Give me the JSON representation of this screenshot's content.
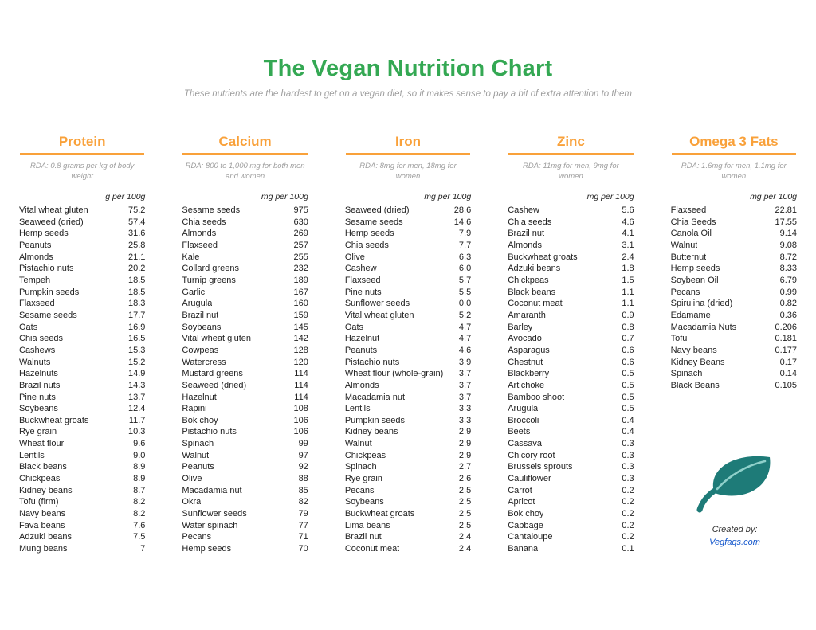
{
  "page": {
    "title": "The Vegan Nutrition Chart",
    "subtitle": "These nutrients are the hardest to get on a vegan diet, so it makes sense to pay a bit of extra attention to them"
  },
  "colors": {
    "title_green": "#34a853",
    "header_orange": "#f9a13a",
    "leaf_teal": "#1e7b78",
    "link_blue": "#1155cc"
  },
  "footer": {
    "created_by": "Created by:",
    "link": "Vegfaqs.com"
  },
  "columns": [
    {
      "name": "Protein",
      "rda": "RDA: 0.8 grams per kg of body weight",
      "unit": "g per 100g",
      "rows": [
        [
          "Vital wheat gluten",
          "75.2"
        ],
        [
          "Seaweed (dried)",
          "57.4"
        ],
        [
          "Hemp seeds",
          "31.6"
        ],
        [
          "Peanuts",
          "25.8"
        ],
        [
          "Almonds",
          "21.1"
        ],
        [
          "Pistachio nuts",
          "20.2"
        ],
        [
          "Tempeh",
          "18.5"
        ],
        [
          "Pumpkin seeds",
          "18.5"
        ],
        [
          "Flaxseed",
          "18.3"
        ],
        [
          "Sesame seeds",
          "17.7"
        ],
        [
          "Oats",
          "16.9"
        ],
        [
          "Chia seeds",
          "16.5"
        ],
        [
          "Cashews",
          "15.3"
        ],
        [
          "Walnuts",
          "15.2"
        ],
        [
          "Hazelnuts",
          "14.9"
        ],
        [
          "Brazil nuts",
          "14.3"
        ],
        [
          "Pine nuts",
          "13.7"
        ],
        [
          "Soybeans",
          "12.4"
        ],
        [
          "Buckwheat groats",
          "11.7"
        ],
        [
          "Rye grain",
          "10.3"
        ],
        [
          "Wheat flour",
          "9.6"
        ],
        [
          "Lentils",
          "9.0"
        ],
        [
          "Black beans",
          "8.9"
        ],
        [
          "Chickpeas",
          "8.9"
        ],
        [
          "Kidney beans",
          "8.7"
        ],
        [
          "Tofu (firm)",
          "8.2"
        ],
        [
          "Navy beans",
          "8.2"
        ],
        [
          "Fava beans",
          "7.6"
        ],
        [
          "Adzuki beans",
          "7.5"
        ],
        [
          "Mung beans",
          "7"
        ]
      ]
    },
    {
      "name": "Calcium",
      "rda": "RDA: 800 to 1,000 mg for both men and women",
      "unit": "mg per 100g",
      "rows": [
        [
          "Sesame seeds",
          "975"
        ],
        [
          "Chia seeds",
          "630"
        ],
        [
          "Almonds",
          "269"
        ],
        [
          "Flaxseed",
          "257"
        ],
        [
          "Kale",
          "255"
        ],
        [
          "Collard greens",
          "232"
        ],
        [
          "Turnip greens",
          "189"
        ],
        [
          "Garlic",
          "167"
        ],
        [
          "Arugula",
          "160"
        ],
        [
          "Brazil nut",
          "159"
        ],
        [
          "Soybeans",
          "145"
        ],
        [
          "Vital wheat gluten",
          "142"
        ],
        [
          "Cowpeas",
          "128"
        ],
        [
          "Watercress",
          "120"
        ],
        [
          "Mustard greens",
          "114"
        ],
        [
          "Seaweed (dried)",
          "114"
        ],
        [
          "Hazelnut",
          "114"
        ],
        [
          "Rapini",
          "108"
        ],
        [
          "Bok choy",
          "106"
        ],
        [
          "Pistachio nuts",
          "106"
        ],
        [
          "Spinach",
          "99"
        ],
        [
          "Walnut",
          "97"
        ],
        [
          "Peanuts",
          "92"
        ],
        [
          "Olive",
          "88"
        ],
        [
          "Macadamia nut",
          "85"
        ],
        [
          "Okra",
          "82"
        ],
        [
          "Sunflower seeds",
          "79"
        ],
        [
          "Water spinach",
          "77"
        ],
        [
          "Pecans",
          "71"
        ],
        [
          "Hemp seeds",
          "70"
        ]
      ]
    },
    {
      "name": "Iron",
      "rda": "RDA: 8mg for men, 18mg for women",
      "unit": "mg per 100g",
      "rows": [
        [
          "Seaweed (dried)",
          "28.6"
        ],
        [
          "Sesame seeds",
          "14.6"
        ],
        [
          "Hemp seeds",
          "7.9"
        ],
        [
          "Chia seeds",
          "7.7"
        ],
        [
          "Olive",
          "6.3"
        ],
        [
          "Cashew",
          "6.0"
        ],
        [
          "Flaxseed",
          "5.7"
        ],
        [
          "Pine nuts",
          "5.5"
        ],
        [
          "Sunflower seeds",
          "0.0"
        ],
        [
          "Vital wheat gluten",
          "5.2"
        ],
        [
          "Oats",
          "4.7"
        ],
        [
          "Hazelnut",
          "4.7"
        ],
        [
          "Peanuts",
          "4.6"
        ],
        [
          "Pistachio nuts",
          "3.9"
        ],
        [
          "Wheat flour (whole-grain)",
          "3.7"
        ],
        [
          "Almonds",
          "3.7"
        ],
        [
          "Macadamia nut",
          "3.7"
        ],
        [
          "Lentils",
          "3.3"
        ],
        [
          "Pumpkin seeds",
          "3.3"
        ],
        [
          "Kidney beans",
          "2.9"
        ],
        [
          "Walnut",
          "2.9"
        ],
        [
          "Chickpeas",
          "2.9"
        ],
        [
          "Spinach",
          "2.7"
        ],
        [
          "Rye grain",
          "2.6"
        ],
        [
          "Pecans",
          "2.5"
        ],
        [
          "Soybeans",
          "2.5"
        ],
        [
          "Buckwheat groats",
          "2.5"
        ],
        [
          "Lima beans",
          "2.5"
        ],
        [
          "Brazil nut",
          "2.4"
        ],
        [
          "Coconut meat",
          "2.4"
        ]
      ]
    },
    {
      "name": "Zinc",
      "rda": "RDA: 11mg for men, 9mg for women",
      "unit": "mg per 100g",
      "rows": [
        [
          "Cashew",
          "5.6"
        ],
        [
          "Chia seeds",
          "4.6"
        ],
        [
          "Brazil nut",
          "4.1"
        ],
        [
          "Almonds",
          "3.1"
        ],
        [
          "Buckwheat groats",
          "2.4"
        ],
        [
          "Adzuki beans",
          "1.8"
        ],
        [
          "Chickpeas",
          "1.5"
        ],
        [
          "Black beans",
          "1.1"
        ],
        [
          "Coconut meat",
          "1.1"
        ],
        [
          "Amaranth",
          "0.9"
        ],
        [
          "Barley",
          "0.8"
        ],
        [
          "Avocado",
          "0.7"
        ],
        [
          "Asparagus",
          "0.6"
        ],
        [
          "Chestnut",
          "0.6"
        ],
        [
          "Blackberry",
          "0.5"
        ],
        [
          "Artichoke",
          "0.5"
        ],
        [
          "Bamboo shoot",
          "0.5"
        ],
        [
          "Arugula",
          "0.5"
        ],
        [
          "Broccoli",
          "0.4"
        ],
        [
          "Beets",
          "0.4"
        ],
        [
          "Cassava",
          "0.3"
        ],
        [
          "Chicory root",
          "0.3"
        ],
        [
          "Brussels sprouts",
          "0.3"
        ],
        [
          "Cauliflower",
          "0.3"
        ],
        [
          "Carrot",
          "0.2"
        ],
        [
          "Apricot",
          "0.2"
        ],
        [
          "Bok choy",
          "0.2"
        ],
        [
          "Cabbage",
          "0.2"
        ],
        [
          "Cantaloupe",
          "0.2"
        ],
        [
          "Banana",
          "0.1"
        ]
      ]
    },
    {
      "name": "Omega 3 Fats",
      "rda": "RDA: 1.6mg for men, 1.1mg for women",
      "unit": "mg per 100g",
      "rows": [
        [
          "Flaxseed",
          "22.81"
        ],
        [
          "Chia Seeds",
          "17.55"
        ],
        [
          "Canola Oil",
          "9.14"
        ],
        [
          "Walnut",
          "9.08"
        ],
        [
          "Butternut",
          "8.72"
        ],
        [
          "Hemp seeds",
          "8.33"
        ],
        [
          "Soybean Oil",
          "6.79"
        ],
        [
          "Pecans",
          "0.99"
        ],
        [
          "Spirulina (dried)",
          "0.82"
        ],
        [
          "Edamame",
          "0.36"
        ],
        [
          "Macadamia Nuts",
          "0.206"
        ],
        [
          "Tofu",
          "0.181"
        ],
        [
          "Navy beans",
          "0.177"
        ],
        [
          "Kidney Beans",
          "0.17"
        ],
        [
          "Spinach",
          "0.14"
        ],
        [
          "Black Beans",
          "0.105"
        ]
      ]
    }
  ]
}
